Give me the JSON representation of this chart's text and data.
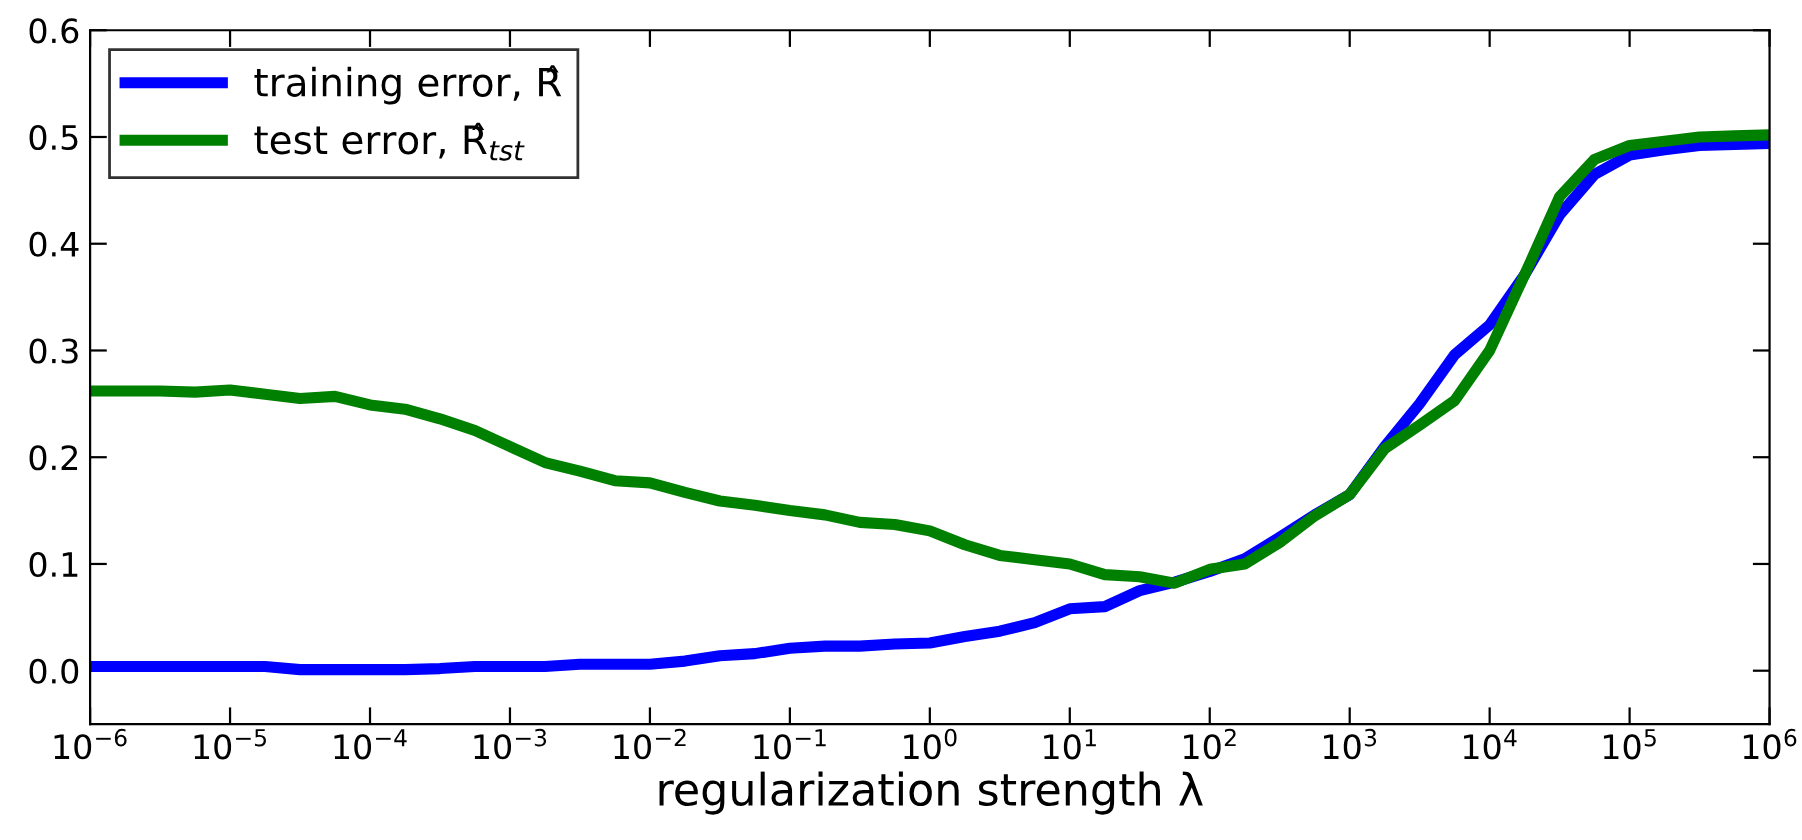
{
  "chart_data": {
    "type": "line",
    "xlabel": "regularization strength λ",
    "log": "x",
    "legend": "top left",
    "grid": false,
    "marker": "none",
    "line_style": "solid",
    "x": [
      1e-06,
      1.78e-06,
      3.16e-06,
      5.62e-06,
      1e-05,
      1.78e-05,
      3.16e-05,
      5.62e-05,
      0.0001,
      0.000178,
      0.000316,
      0.000562,
      0.001,
      0.00178,
      0.00316,
      0.00562,
      0.01,
      0.0178,
      0.0316,
      0.0562,
      0.1,
      0.178,
      0.316,
      0.562,
      1,
      1.78,
      3.16,
      5.62,
      10,
      17.8,
      31.6,
      56.2,
      100,
      178,
      316,
      562,
      1000,
      1780,
      3160,
      5620,
      10000,
      17800,
      31600,
      56200,
      100000,
      178000,
      316000,
      562000,
      1000000
    ],
    "series": [
      {
        "name": "training error, R̂",
        "color": "#0000ff",
        "values": [
          0.004,
          0.004,
          0.004,
          0.004,
          0.004,
          0.004,
          0.001,
          0.001,
          0.001,
          0.001,
          0.002,
          0.004,
          0.004,
          0.004,
          0.006,
          0.006,
          0.006,
          0.009,
          0.014,
          0.016,
          0.021,
          0.023,
          0.023,
          0.025,
          0.026,
          0.032,
          0.037,
          0.045,
          0.058,
          0.06,
          0.075,
          0.083,
          0.093,
          0.105,
          0.125,
          0.146,
          0.165,
          0.21,
          0.25,
          0.296,
          0.324,
          0.371,
          0.427,
          0.465,
          0.483,
          0.488,
          0.492,
          0.493,
          0.494
        ]
      },
      {
        "name": "test error, R̂$_{tst}$",
        "color": "#008000",
        "values": [
          0.262,
          0.262,
          0.262,
          0.261,
          0.263,
          0.259,
          0.255,
          0.257,
          0.249,
          0.245,
          0.236,
          0.225,
          0.21,
          0.195,
          0.187,
          0.178,
          0.176,
          0.167,
          0.159,
          0.155,
          0.15,
          0.146,
          0.139,
          0.137,
          0.131,
          0.118,
          0.108,
          0.104,
          0.1,
          0.09,
          0.088,
          0.082,
          0.095,
          0.1,
          0.12,
          0.145,
          0.165,
          0.208,
          0.23,
          0.253,
          0.3,
          0.371,
          0.444,
          0.479,
          0.492,
          0.496,
          0.5,
          0.501,
          0.502
        ]
      }
    ],
    "xlim": [
      1e-06,
      1000000
    ],
    "xticks": [
      {
        "value": 1e-06,
        "label": "10$^{−6}$"
      },
      {
        "value": 1e-05,
        "label": "10$^{−5}$"
      },
      {
        "value": 0.0001,
        "label": "10$^{−4}$"
      },
      {
        "value": 0.001,
        "label": "10$^{−3}$"
      },
      {
        "value": 0.01,
        "label": "10$^{−2}$"
      },
      {
        "value": 0.1,
        "label": "10$^{−1}$"
      },
      {
        "value": 1,
        "label": "10$^{0}$"
      },
      {
        "value": 10,
        "label": "10$^{1}$"
      },
      {
        "value": 100,
        "label": "10$^{2}$"
      },
      {
        "value": 1000,
        "label": "10$^{3}$"
      },
      {
        "value": 10000,
        "label": "10$^{4}$"
      },
      {
        "value": 100000,
        "label": "10$^{5}$"
      },
      {
        "value": 1000000,
        "label": "10$^{6}$"
      }
    ],
    "ylim": [
      -0.05,
      0.6
    ],
    "yticks": [
      {
        "value": 0,
        "label": "0.0"
      },
      {
        "value": 0.1,
        "label": "0.1"
      },
      {
        "value": 0.2,
        "label": "0.2"
      },
      {
        "value": 0.3,
        "label": "0.3"
      },
      {
        "value": 0.4,
        "label": "0.4"
      },
      {
        "value": 0.5,
        "label": "0.5"
      },
      {
        "value": 0.6,
        "label": "0.6"
      }
    ]
  }
}
